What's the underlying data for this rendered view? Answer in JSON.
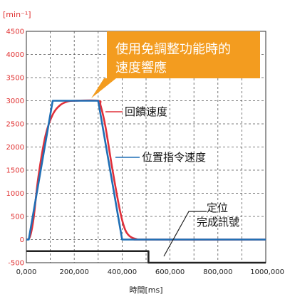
{
  "chart_data": {
    "type": "line",
    "y_unit_label": "[min⁻¹]",
    "xlabel": "時間[ms]",
    "xlim": [
      0,
      1000000
    ],
    "ylim": [
      -500,
      4500
    ],
    "x_ticks": [
      0,
      200000,
      400000,
      600000,
      800000,
      1000000
    ],
    "x_tick_labels": [
      "0,000",
      "200,000",
      "400,000",
      "600,000",
      "800,000",
      "1000,000"
    ],
    "y_ticks": [
      -500,
      0,
      500,
      1000,
      1500,
      2000,
      2500,
      3000,
      3500,
      4000,
      4500
    ],
    "y_tick_labels": [
      "-500",
      "0",
      "500",
      "1000",
      "1500",
      "2000",
      "2500",
      "3000",
      "3500",
      "4000",
      "4500"
    ],
    "grid": true,
    "callout": {
      "lines": [
        "使用免調整功能時的",
        "速度響應"
      ],
      "color": "#f39c1f"
    },
    "series": [
      {
        "name": "位置指令速度",
        "color": "#1f6fb5",
        "x": [
          0,
          10000,
          110000,
          300000,
          400000,
          1000000
        ],
        "y": [
          0,
          0,
          3000,
          3000,
          0,
          0
        ]
      },
      {
        "name": "回饋速度",
        "color": "#e0303a",
        "x": [
          0,
          15000,
          30000,
          50000,
          80000,
          110000,
          140000,
          170000,
          200000,
          300000,
          310000,
          330000,
          360000,
          390000,
          410000,
          430000,
          460000,
          500000,
          1000000
        ],
        "y": [
          0,
          60,
          450,
          1350,
          2250,
          2700,
          2900,
          2980,
          3000,
          3000,
          2900,
          2450,
          1500,
          650,
          250,
          80,
          10,
          0,
          0
        ]
      },
      {
        "name": "定位完成訊號",
        "label_lines": [
          "定位",
          "完成訊號"
        ],
        "color": "#222222",
        "x": [
          0,
          510000,
          510000,
          1000000
        ],
        "y": [
          -250,
          -250,
          -500,
          -500
        ]
      }
    ]
  }
}
